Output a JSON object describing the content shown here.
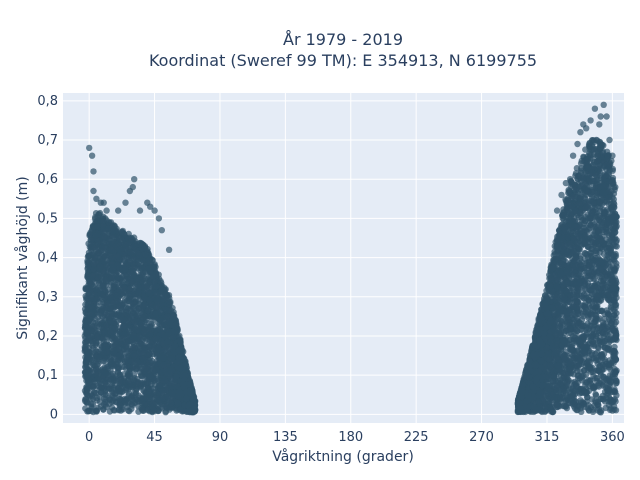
{
  "chart_data": {
    "type": "scatter",
    "title_line1": "År 1979 - 2019",
    "title_line2": "Koordinat (Sweref 99 TM): E 354913, N 6199755",
    "xlabel": "Vågriktning (grader)",
    "ylabel": "Signifikant våghöjd (m)",
    "xlim": [
      -18,
      368
    ],
    "ylim": [
      -0.022,
      0.82
    ],
    "xticks": [
      0,
      45,
      90,
      135,
      180,
      225,
      270,
      315,
      360
    ],
    "xtick_labels": [
      "0",
      "45",
      "90",
      "135",
      "180",
      "225",
      "270",
      "315",
      "360"
    ],
    "yticks": [
      0,
      0.1,
      0.2,
      0.3,
      0.4,
      0.5,
      0.6,
      0.7,
      0.8
    ],
    "ytick_labels": [
      "0",
      "0,1",
      "0,2",
      "0,3",
      "0,4",
      "0,5",
      "0,6",
      "0,7",
      "0,8"
    ],
    "marker_color": "#2f5269",
    "background_color": "#e5ecf6",
    "grid": true,
    "series": [
      {
        "clusters": [
          {
            "x_range": [
              -3,
              73
            ],
            "envelope": [
              [
                -3,
                0.3
              ],
              [
                0,
                0.45
              ],
              [
                5,
                0.52
              ],
              [
                10,
                0.5
              ],
              [
                20,
                0.47
              ],
              [
                30,
                0.45
              ],
              [
                40,
                0.42
              ],
              [
                45,
                0.38
              ],
              [
                50,
                0.33
              ],
              [
                55,
                0.3
              ],
              [
                60,
                0.23
              ],
              [
                65,
                0.15
              ],
              [
                70,
                0.07
              ],
              [
                73,
                0.03
              ]
            ],
            "outliers": [
              [
                0,
                0.68
              ],
              [
                2,
                0.66
              ],
              [
                3,
                0.62
              ],
              [
                3,
                0.57
              ],
              [
                5,
                0.55
              ],
              [
                8,
                0.54
              ],
              [
                10,
                0.54
              ],
              [
                12,
                0.52
              ],
              [
                15,
                0.49
              ],
              [
                20,
                0.52
              ],
              [
                25,
                0.54
              ],
              [
                28,
                0.57
              ],
              [
                30,
                0.58
              ],
              [
                31,
                0.6
              ],
              [
                35,
                0.52
              ],
              [
                40,
                0.54
              ],
              [
                42,
                0.53
              ],
              [
                45,
                0.52
              ],
              [
                48,
                0.5
              ],
              [
                50,
                0.47
              ],
              [
                55,
                0.42
              ]
            ]
          },
          {
            "x_range": [
              295,
              363
            ],
            "envelope": [
              [
                295,
                0.03
              ],
              [
                300,
                0.1
              ],
              [
                305,
                0.17
              ],
              [
                310,
                0.25
              ],
              [
                315,
                0.32
              ],
              [
                320,
                0.42
              ],
              [
                325,
                0.5
              ],
              [
                330,
                0.58
              ],
              [
                335,
                0.62
              ],
              [
                340,
                0.66
              ],
              [
                345,
                0.7
              ],
              [
                350,
                0.7
              ],
              [
                355,
                0.68
              ],
              [
                360,
                0.64
              ],
              [
                363,
                0.5
              ]
            ],
            "outliers": [
              [
                322,
                0.52
              ],
              [
                325,
                0.56
              ],
              [
                328,
                0.59
              ],
              [
                331,
                0.6
              ],
              [
                333,
                0.66
              ],
              [
                336,
                0.69
              ],
              [
                338,
                0.72
              ],
              [
                340,
                0.74
              ],
              [
                342,
                0.73
              ],
              [
                345,
                0.75
              ],
              [
                348,
                0.78
              ],
              [
                351,
                0.74
              ],
              [
                352,
                0.76
              ],
              [
                354,
                0.79
              ],
              [
                356,
                0.76
              ],
              [
                358,
                0.7
              ],
              [
                360,
                0.66
              ],
              [
                362,
                0.58
              ]
            ]
          }
        ],
        "points_per_cluster": 3500
      }
    ]
  }
}
